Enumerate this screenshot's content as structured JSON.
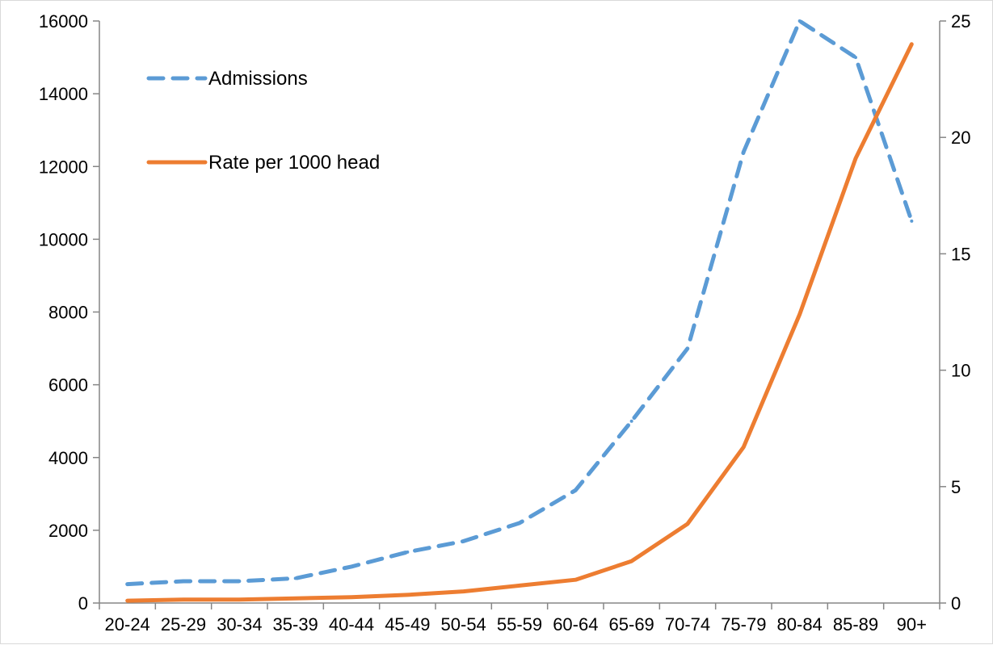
{
  "chart_data": {
    "type": "line",
    "title": "",
    "categories": [
      "20-24",
      "25-29",
      "30-34",
      "35-39",
      "40-44",
      "45-49",
      "50-54",
      "55-59",
      "60-64",
      "65-69",
      "70-74",
      "75-79",
      "80-84",
      "85-89",
      "90+"
    ],
    "series": [
      {
        "name": "Admissions",
        "axis": "left",
        "style": "dashed",
        "color": "#5B9BD5",
        "values": [
          520,
          600,
          600,
          680,
          1000,
          1400,
          1700,
          2200,
          3100,
          5000,
          7000,
          12400,
          16000,
          15000,
          10500
        ]
      },
      {
        "name": "Rate per 1000 head",
        "axis": "right",
        "style": "solid",
        "color": "#ED7D31",
        "values": [
          0.1,
          0.15,
          0.15,
          0.2,
          0.25,
          0.35,
          0.5,
          0.75,
          1.0,
          1.8,
          3.4,
          6.7,
          12.4,
          19.1,
          24.0
        ]
      }
    ],
    "y_left": {
      "min": 0,
      "max": 16000,
      "ticks": [
        "0",
        "2000",
        "4000",
        "6000",
        "8000",
        "10000",
        "12000",
        "14000",
        "16000"
      ]
    },
    "y_right": {
      "min": 0,
      "max": 25,
      "ticks": [
        "0",
        "5",
        "10",
        "15",
        "20",
        "25"
      ]
    },
    "grid": false,
    "legend_position": "top-left"
  }
}
